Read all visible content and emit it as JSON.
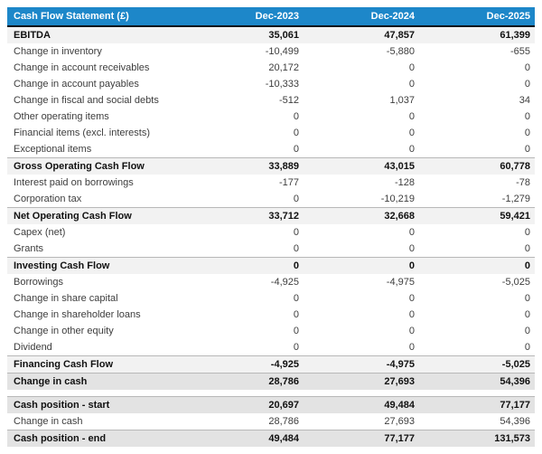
{
  "colors": {
    "header_bg": "#1d87c9",
    "header_text": "#ffffff",
    "header_bottom_border": "#10161d",
    "subtotal_row_bg": "#f2f2f2",
    "total_row_bg": "#e3e3e3",
    "row_border": "#b8b8b8",
    "body_text": "#3d3d3d"
  },
  "table": {
    "title": "Cash Flow Statement (£)",
    "columns": [
      "Dec-2023",
      "Dec-2024",
      "Dec-2025"
    ],
    "sections": [
      {
        "rows": [
          {
            "label": "EBITDA",
            "values": [
              "35,061",
              "47,857",
              "61,399"
            ],
            "style": "subtotal"
          },
          {
            "label": "Change in inventory",
            "values": [
              "-10,499",
              "-5,880",
              "-655"
            ],
            "style": "normal"
          },
          {
            "label": "Change in account receivables",
            "values": [
              "20,172",
              "0",
              "0"
            ],
            "style": "normal"
          },
          {
            "label": "Change in account payables",
            "values": [
              "-10,333",
              "0",
              "0"
            ],
            "style": "normal"
          },
          {
            "label": "Change in fiscal and social debts",
            "values": [
              "-512",
              "1,037",
              "34"
            ],
            "style": "normal"
          },
          {
            "label": "Other operating items",
            "values": [
              "0",
              "0",
              "0"
            ],
            "style": "normal"
          },
          {
            "label": "Financial items (excl. interests)",
            "values": [
              "0",
              "0",
              "0"
            ],
            "style": "normal"
          },
          {
            "label": "Exceptional items",
            "values": [
              "0",
              "0",
              "0"
            ],
            "style": "normal"
          },
          {
            "label": "Gross Operating Cash Flow",
            "values": [
              "33,889",
              "43,015",
              "60,778"
            ],
            "style": "subtotal"
          },
          {
            "label": "Interest paid on borrowings",
            "values": [
              "-177",
              "-128",
              "-78"
            ],
            "style": "normal"
          },
          {
            "label": "Corporation tax",
            "values": [
              "0",
              "-10,219",
              "-1,279"
            ],
            "style": "normal"
          },
          {
            "label": "Net Operating Cash Flow",
            "values": [
              "33,712",
              "32,668",
              "59,421"
            ],
            "style": "subtotal"
          },
          {
            "label": "Capex (net)",
            "values": [
              "0",
              "0",
              "0"
            ],
            "style": "normal"
          },
          {
            "label": "Grants",
            "values": [
              "0",
              "0",
              "0"
            ],
            "style": "normal"
          },
          {
            "label": "Investing Cash Flow",
            "values": [
              "0",
              "0",
              "0"
            ],
            "style": "subtotal"
          },
          {
            "label": "Borrowings",
            "values": [
              "-4,925",
              "-4,975",
              "-5,025"
            ],
            "style": "normal"
          },
          {
            "label": "Change in share capital",
            "values": [
              "0",
              "0",
              "0"
            ],
            "style": "normal"
          },
          {
            "label": "Change in shareholder loans",
            "values": [
              "0",
              "0",
              "0"
            ],
            "style": "normal"
          },
          {
            "label": "Change in other equity",
            "values": [
              "0",
              "0",
              "0"
            ],
            "style": "normal"
          },
          {
            "label": "Dividend",
            "values": [
              "0",
              "0",
              "0"
            ],
            "style": "normal"
          },
          {
            "label": "Financing Cash Flow",
            "values": [
              "-4,925",
              "-4,975",
              "-5,025"
            ],
            "style": "subtotal"
          },
          {
            "label": "Change in cash",
            "values": [
              "28,786",
              "27,693",
              "54,396"
            ],
            "style": "total"
          }
        ]
      },
      {
        "rows": [
          {
            "label": "Cash position - start",
            "values": [
              "20,697",
              "49,484",
              "77,177"
            ],
            "style": "total"
          },
          {
            "label": "Change in cash",
            "values": [
              "28,786",
              "27,693",
              "54,396"
            ],
            "style": "normal"
          },
          {
            "label": "Cash position - end",
            "values": [
              "49,484",
              "77,177",
              "131,573"
            ],
            "style": "total"
          }
        ]
      }
    ]
  },
  "chart_data": {
    "type": "table",
    "title": "Cash Flow Statement (£)",
    "columns": [
      "Dec-2023",
      "Dec-2024",
      "Dec-2025"
    ],
    "rows": [
      {
        "label": "EBITDA",
        "values": [
          35061,
          47857,
          61399
        ]
      },
      {
        "label": "Change in inventory",
        "values": [
          -10499,
          -5880,
          -655
        ]
      },
      {
        "label": "Change in account receivables",
        "values": [
          20172,
          0,
          0
        ]
      },
      {
        "label": "Change in account payables",
        "values": [
          -10333,
          0,
          0
        ]
      },
      {
        "label": "Change in fiscal and social debts",
        "values": [
          -512,
          1037,
          34
        ]
      },
      {
        "label": "Other operating items",
        "values": [
          0,
          0,
          0
        ]
      },
      {
        "label": "Financial items (excl. interests)",
        "values": [
          0,
          0,
          0
        ]
      },
      {
        "label": "Exceptional items",
        "values": [
          0,
          0,
          0
        ]
      },
      {
        "label": "Gross Operating Cash Flow",
        "values": [
          33889,
          43015,
          60778
        ]
      },
      {
        "label": "Interest paid on borrowings",
        "values": [
          -177,
          -128,
          -78
        ]
      },
      {
        "label": "Corporation tax",
        "values": [
          0,
          -10219,
          -1279
        ]
      },
      {
        "label": "Net Operating Cash Flow",
        "values": [
          33712,
          32668,
          59421
        ]
      },
      {
        "label": "Capex (net)",
        "values": [
          0,
          0,
          0
        ]
      },
      {
        "label": "Grants",
        "values": [
          0,
          0,
          0
        ]
      },
      {
        "label": "Investing Cash Flow",
        "values": [
          0,
          0,
          0
        ]
      },
      {
        "label": "Borrowings",
        "values": [
          -4925,
          -4975,
          -5025
        ]
      },
      {
        "label": "Change in share capital",
        "values": [
          0,
          0,
          0
        ]
      },
      {
        "label": "Change in shareholder loans",
        "values": [
          0,
          0,
          0
        ]
      },
      {
        "label": "Change in other equity",
        "values": [
          0,
          0,
          0
        ]
      },
      {
        "label": "Dividend",
        "values": [
          0,
          0,
          0
        ]
      },
      {
        "label": "Financing Cash Flow",
        "values": [
          -4925,
          -4975,
          -5025
        ]
      },
      {
        "label": "Change in cash",
        "values": [
          28786,
          27693,
          54396
        ]
      },
      {
        "label": "Cash position - start",
        "values": [
          20697,
          49484,
          77177
        ]
      },
      {
        "label": "Change in cash",
        "values": [
          28786,
          27693,
          54396
        ]
      },
      {
        "label": "Cash position - end",
        "values": [
          49484,
          77177,
          131573
        ]
      }
    ]
  }
}
